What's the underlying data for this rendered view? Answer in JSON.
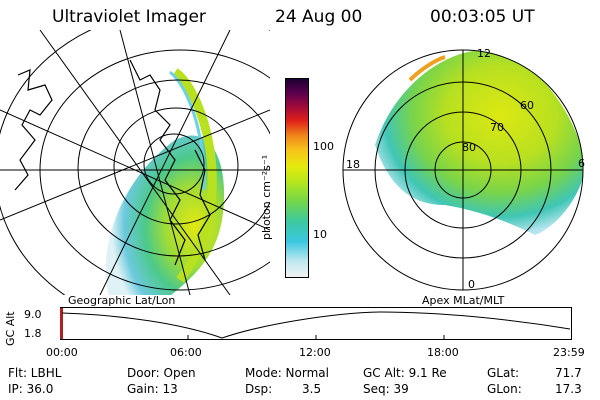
{
  "header": {
    "instrument": "Ultraviolet Imager",
    "date": "24 Aug 00",
    "time": "00:03:05 UT"
  },
  "colorbar": {
    "unit_label": "photon cm⁻²s⁻¹",
    "ticks": [
      "100",
      "10"
    ],
    "scale": "log",
    "colors": [
      "#f2f2f2",
      "#bfe8f0",
      "#3bc7e0",
      "#3cc9a0",
      "#72d64a",
      "#b5e61d",
      "#e6ea0e",
      "#f7c31a",
      "#f08a1a",
      "#e0201a",
      "#a00a3a",
      "#5a0050",
      "#1a0030"
    ]
  },
  "left_map": {
    "label": "Geographic Lat/Lon"
  },
  "right_map": {
    "label": "Apex MLat/MLT",
    "lat_labels": [
      "80",
      "70",
      "60"
    ],
    "mlt_labels": [
      "12",
      "18",
      "6",
      "0"
    ]
  },
  "altitude_plot": {
    "ylabel": "GC Alt",
    "yticks": [
      "9.0",
      "1.8"
    ],
    "xticks": [
      "00:00",
      "06:00",
      "12:00",
      "18:00",
      "23:59"
    ]
  },
  "info": {
    "filter": "Flt: LBHL",
    "ip": "IP: 36.0",
    "door": "Door: Open",
    "gain": "Gain: 13",
    "mode": "Mode: Normal",
    "dsp_label": "Dsp:",
    "dsp_value": "3.5",
    "gc_alt": "GC Alt: 9.1 Re",
    "seq": "Seq: 39",
    "glat_label": "GLat:",
    "glat_value": "71.7",
    "glon_label": "GLon:",
    "glon_value": "17.3"
  }
}
